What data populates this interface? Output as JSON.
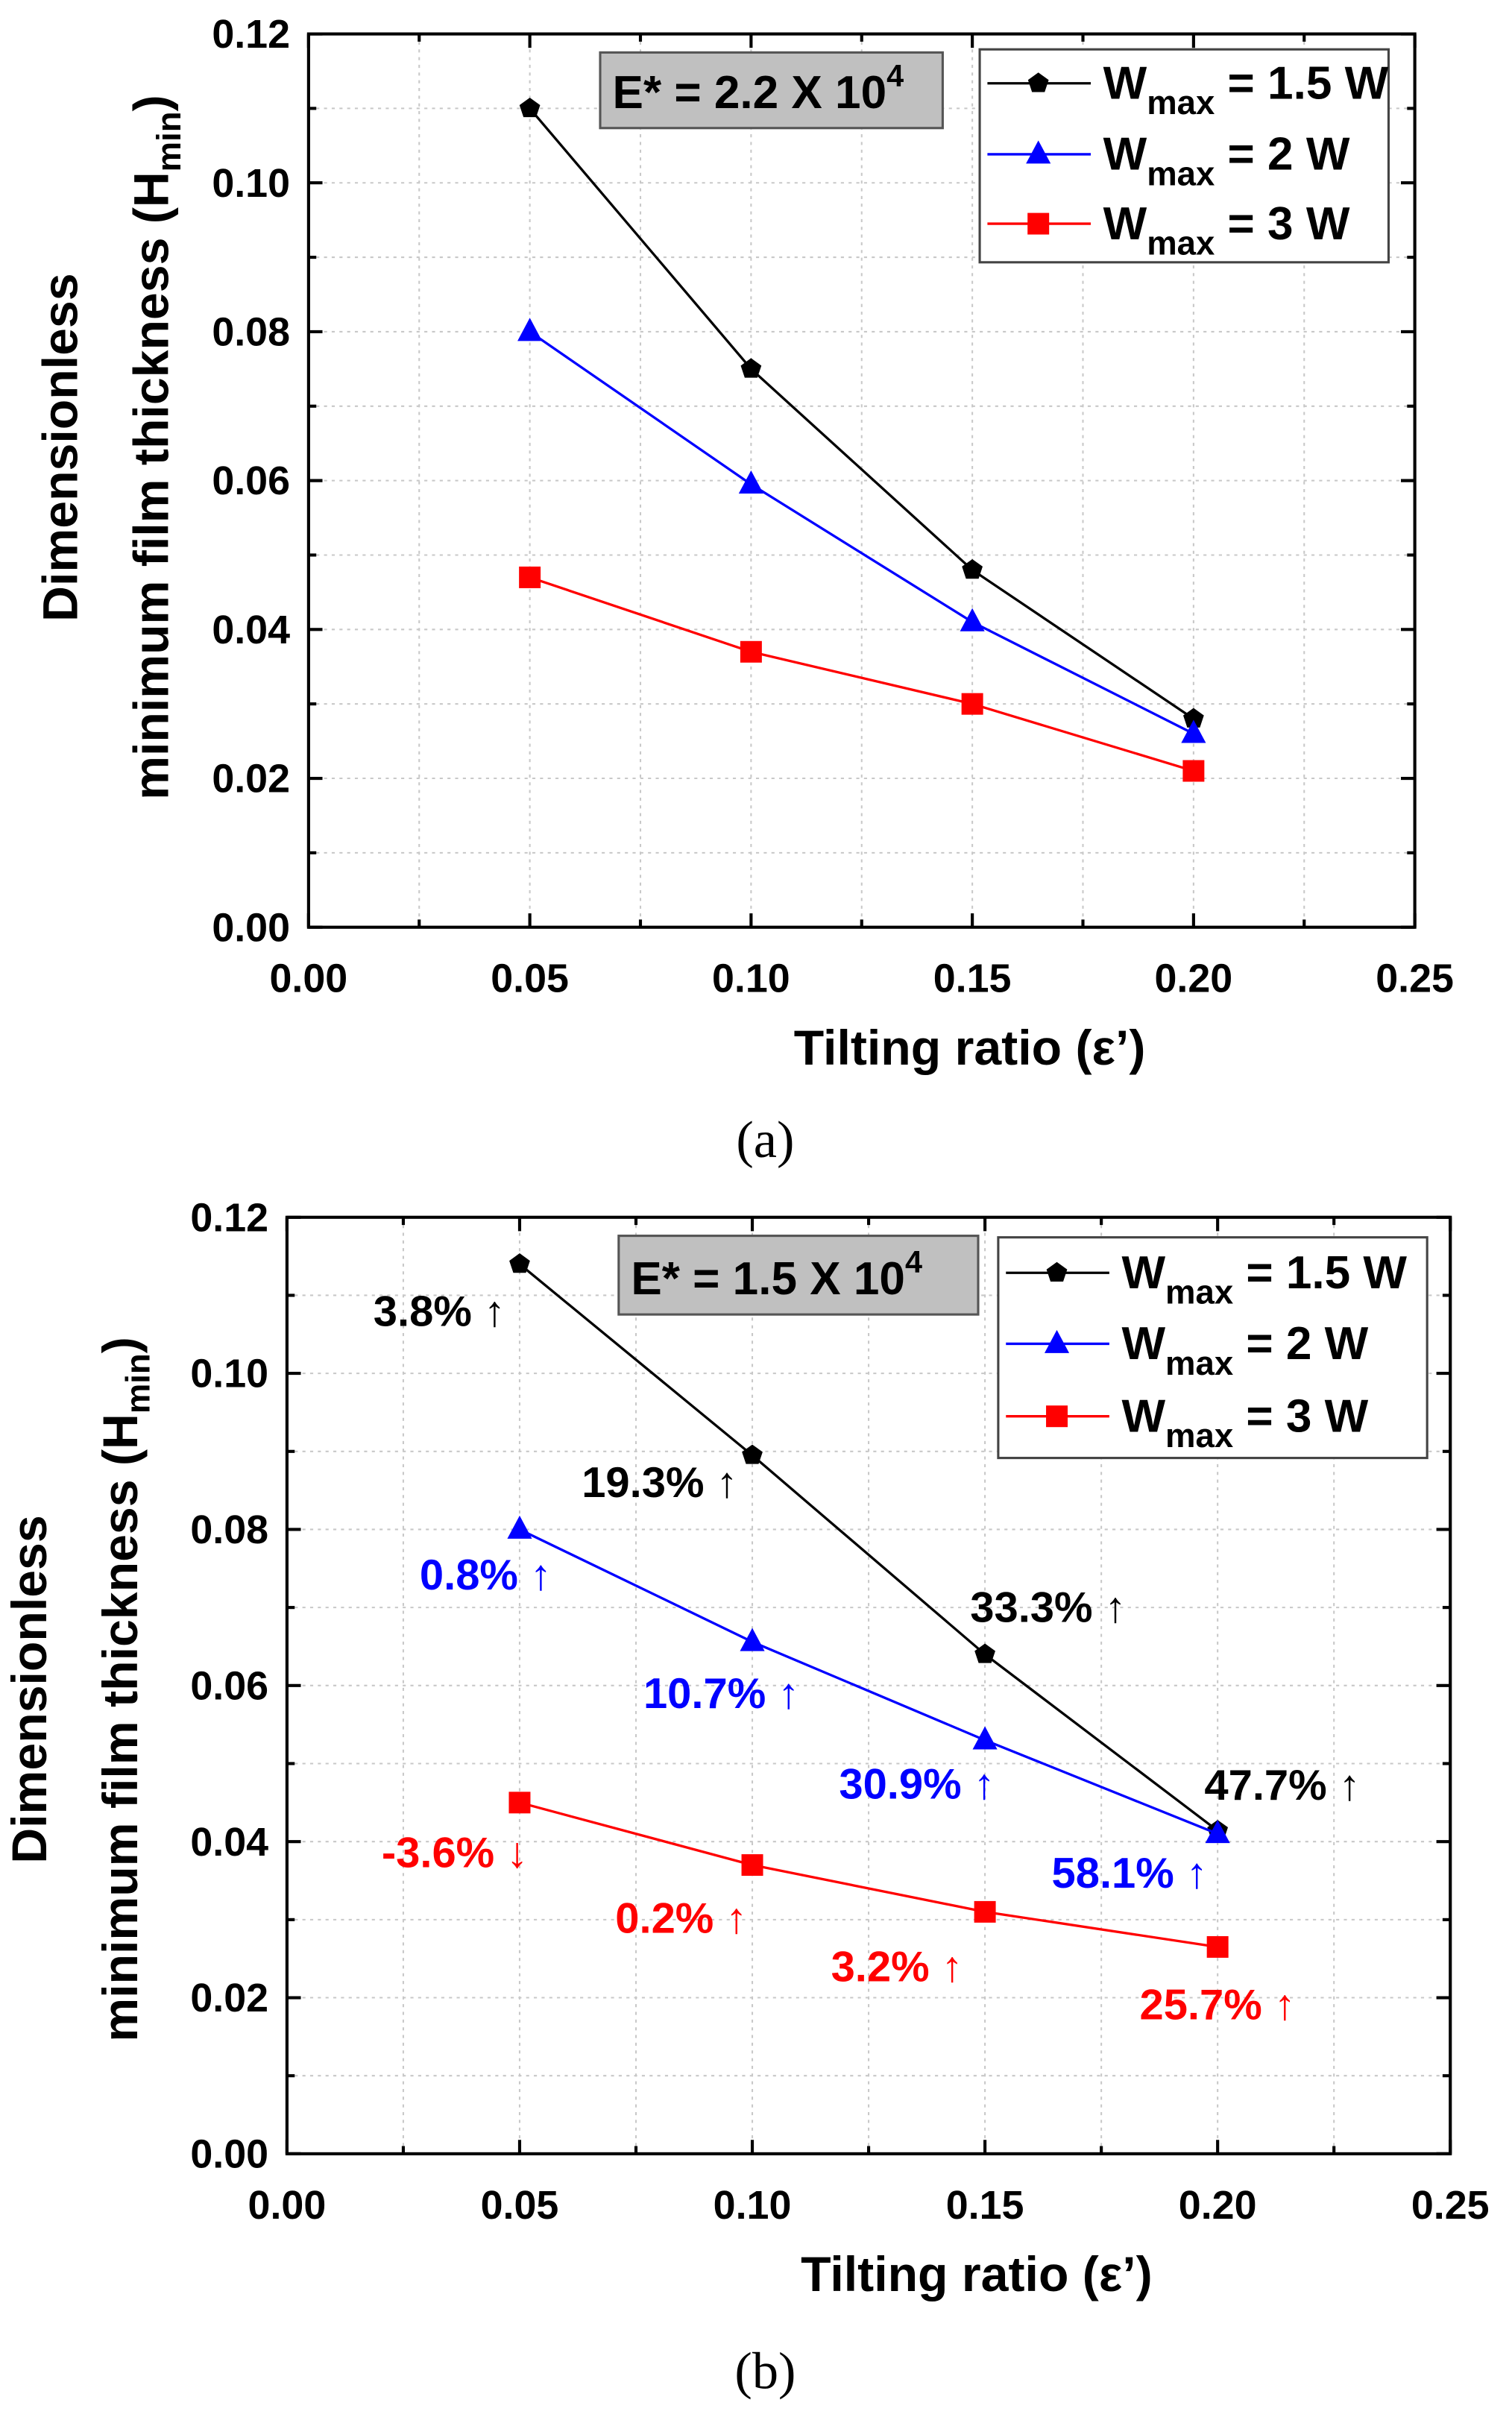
{
  "chart_data": [
    {
      "type": "line",
      "caption": "(a)",
      "box_label": "E* = 2.2 X 10",
      "box_label_sup": "4",
      "xlabel": "Tilting ratio (ε’)",
      "ylabel_line1": "Dimensionless",
      "ylabel_line2": "minimum film thickness (H",
      "ylabel_sub": "min",
      "ylabel_end": ")",
      "xlim": [
        0,
        0.25
      ],
      "ylim": [
        0,
        0.12
      ],
      "xticks": [
        "0.00",
        "0.05",
        "0.10",
        "0.15",
        "0.20",
        "0.25"
      ],
      "yticks": [
        "0.00",
        "0.02",
        "0.04",
        "0.06",
        "0.08",
        "0.10",
        "0.12"
      ],
      "grid": true,
      "legend_position": "top-right",
      "x": [
        0.05,
        0.1,
        0.15,
        0.2
      ],
      "series": [
        {
          "name": "W",
          "sub": "max",
          "rest": " = 1.5 W",
          "color": "#000000",
          "marker": "pentagon",
          "values": [
            0.11,
            0.075,
            0.048,
            0.028
          ]
        },
        {
          "name": "W",
          "sub": "max",
          "rest": " = 2 W",
          "color": "#0000ff",
          "marker": "triangle",
          "values": [
            0.08,
            0.0595,
            0.041,
            0.026
          ]
        },
        {
          "name": "W",
          "sub": "max",
          "rest": " = 3 W",
          "color": "#ff0000",
          "marker": "square",
          "values": [
            0.047,
            0.037,
            0.03,
            0.021
          ]
        }
      ]
    },
    {
      "type": "line",
      "caption": "(b)",
      "box_label": "E* = 1.5 X 10",
      "box_label_sup": "4",
      "xlabel": "Tilting ratio (ε’)",
      "ylabel_line1": "Dimensionless",
      "ylabel_line2": "minimum film thickness (H",
      "ylabel_sub": "min",
      "ylabel_end": ")",
      "xlim": [
        0,
        0.25
      ],
      "ylim": [
        0,
        0.12
      ],
      "xticks": [
        "0.00",
        "0.05",
        "0.10",
        "0.15",
        "0.20",
        "0.25"
      ],
      "yticks": [
        "0.00",
        "0.02",
        "0.04",
        "0.06",
        "0.08",
        "0.10",
        "0.12"
      ],
      "grid": true,
      "legend_position": "top-right",
      "x": [
        0.05,
        0.1,
        0.15,
        0.2
      ],
      "series": [
        {
          "name": "W",
          "sub": "max",
          "rest": " = 1.5 W",
          "color": "#000000",
          "marker": "pentagon",
          "values": [
            0.114,
            0.0895,
            0.064,
            0.0414
          ],
          "annotations": [
            "3.8% ↑",
            "19.3% ↑",
            "33.3% ↑",
            "47.7% ↑"
          ]
        },
        {
          "name": "W",
          "sub": "max",
          "rest": " = 2 W",
          "color": "#0000ff",
          "marker": "triangle",
          "values": [
            0.08,
            0.0656,
            0.053,
            0.041
          ],
          "annotations": [
            "0.8% ↑",
            "10.7% ↑",
            "30.9% ↑",
            "58.1% ↑"
          ]
        },
        {
          "name": "W",
          "sub": "max",
          "rest": " = 3 W",
          "color": "#ff0000",
          "marker": "square",
          "values": [
            0.045,
            0.037,
            0.031,
            0.0265
          ],
          "annotations": [
            "-3.6% ↓",
            "0.2% ↑",
            "3.2% ↑",
            "25.7% ↑"
          ]
        }
      ]
    }
  ]
}
